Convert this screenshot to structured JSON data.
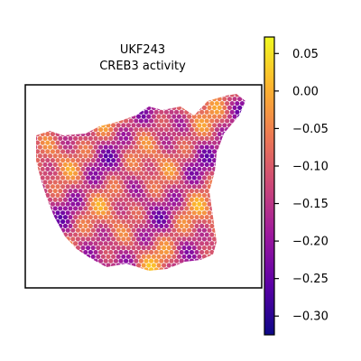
{
  "chart_data": {
    "type": "heatmap",
    "title_line1": "UKF243",
    "title_line2": "CREB3 activity",
    "xlabel": "",
    "ylabel": "",
    "colormap": "plasma",
    "colorbar": {
      "vmin": -0.325,
      "vmax": 0.072,
      "ticks": [
        0.05,
        0.0,
        -0.05,
        -0.1,
        -0.15,
        -0.2,
        -0.25,
        -0.3
      ],
      "tick_labels": [
        "0.05",
        "0.00",
        "−0.05",
        "−0.10",
        "−0.15",
        "−0.20",
        "−0.25",
        "−0.30"
      ]
    },
    "grid": false,
    "legend": "colorbar-right"
  },
  "colors": {
    "plasma_stops": [
      "#0d0887",
      "#5c01a6",
      "#9c179e",
      "#cc4778",
      "#ed7953",
      "#fdb42f",
      "#f0f921"
    ],
    "frame": "#000000",
    "background": "#ffffff"
  }
}
